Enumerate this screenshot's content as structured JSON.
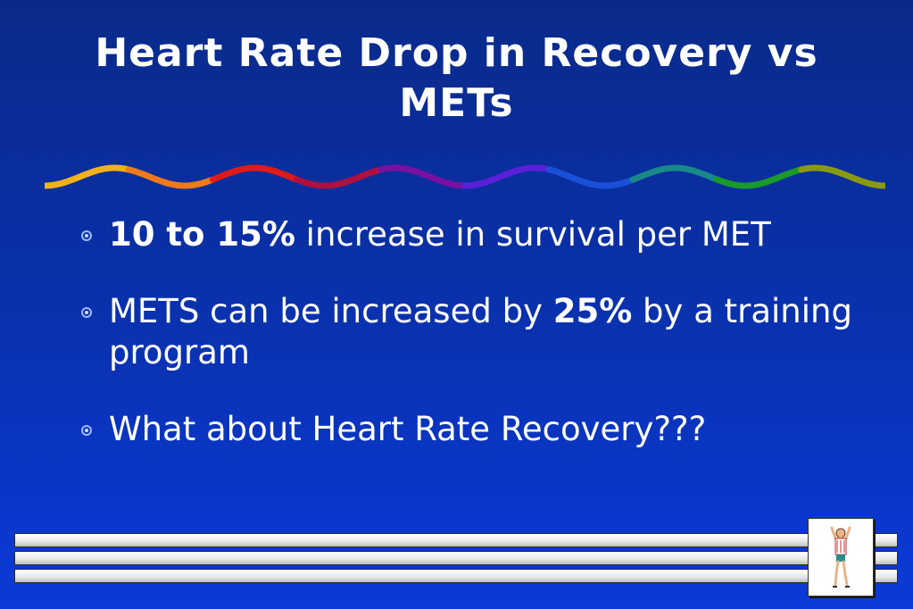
{
  "slide": {
    "title": "Heart Rate Drop in Recovery vs METs",
    "bullets": [
      {
        "bold": "10 to 15%",
        "text": " increase in survival per MET"
      },
      {
        "pre": "METS can be increased by ",
        "bold": "25%",
        "post": " by a training program"
      },
      {
        "text": "What about Heart Rate Recovery???"
      }
    ],
    "wave_colors": [
      "#f2b01a",
      "#f07a1a",
      "#e01a1a",
      "#b01040",
      "#7a10a0",
      "#5a20d8",
      "#1a50d8",
      "#188888",
      "#1a9a2a",
      "#8a9a10"
    ],
    "bullet_icon": "flower-bullet-icon",
    "footer_icon": "runner-icon"
  }
}
